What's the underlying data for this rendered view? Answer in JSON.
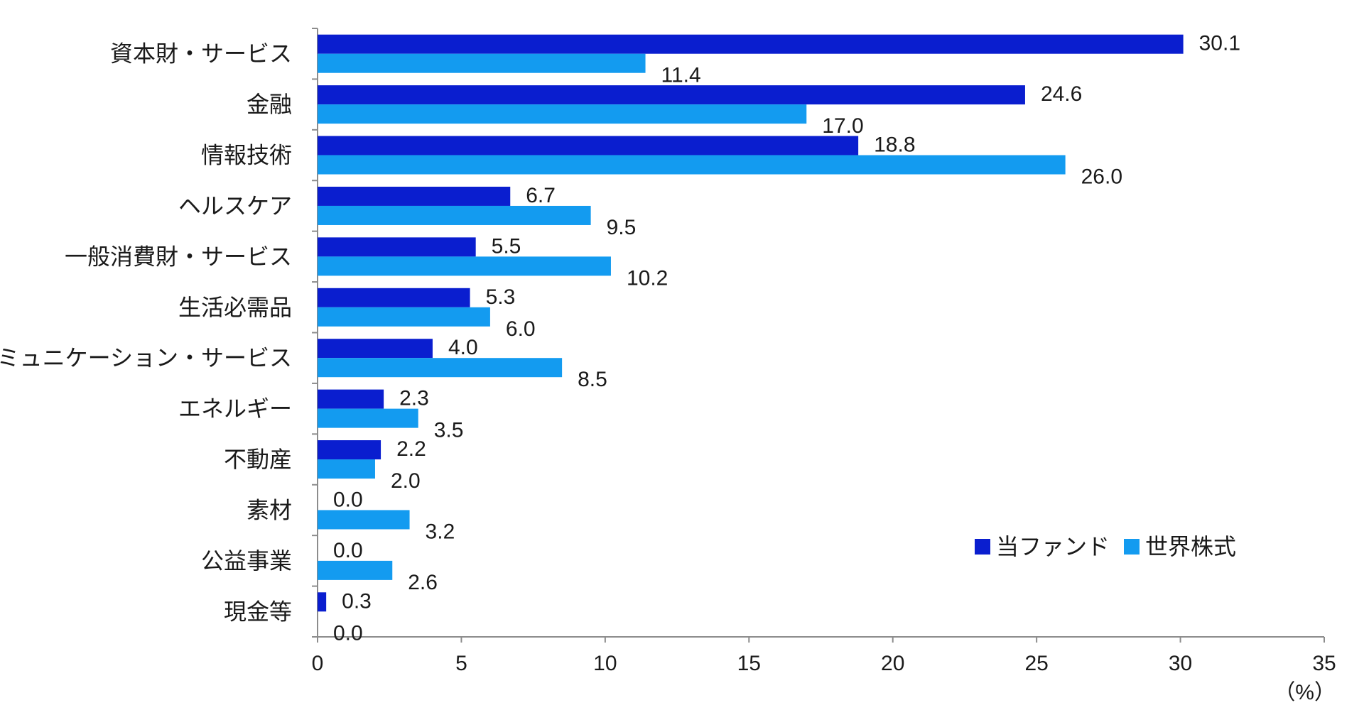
{
  "chart_data": {
    "type": "bar",
    "orientation": "horizontal",
    "categories": [
      "資本財・サービス",
      "金融",
      "情報技術",
      "ヘルスケア",
      "一般消費財・サービス",
      "生活必需品",
      "コミュニケーション・サービス",
      "エネルギー",
      "不動産",
      "素材",
      "公益事業",
      "現金等"
    ],
    "series": [
      {
        "name": "当ファンド",
        "color": "#0a1ecf",
        "values": [
          30.1,
          24.6,
          18.8,
          6.7,
          5.5,
          5.3,
          4.0,
          2.3,
          2.2,
          0.0,
          0.0,
          0.3
        ]
      },
      {
        "name": "世界株式",
        "color": "#139bf0",
        "values": [
          11.4,
          17.0,
          26.0,
          9.5,
          10.2,
          6.0,
          8.5,
          3.5,
          2.0,
          3.2,
          2.6,
          0.0
        ]
      }
    ],
    "data_labels": [
      [
        "30.1",
        "24.6",
        "18.8",
        "6.7",
        "5.5",
        "5.3",
        "4.0",
        "2.3",
        "2.2",
        "0.0",
        "0.0",
        "0.3"
      ],
      [
        "11.4",
        "17.0",
        "26.0",
        "9.5",
        "10.2",
        "6.0",
        "8.5",
        "3.5",
        "2.0",
        "3.2",
        "2.6",
        "0.0"
      ]
    ],
    "xlim": [
      0,
      35
    ],
    "xticks": [
      "0",
      "5",
      "10",
      "15",
      "20",
      "25",
      "30",
      "35"
    ],
    "unit_label": "（%）",
    "legend_position": "bottom-right inside",
    "grid": false
  }
}
